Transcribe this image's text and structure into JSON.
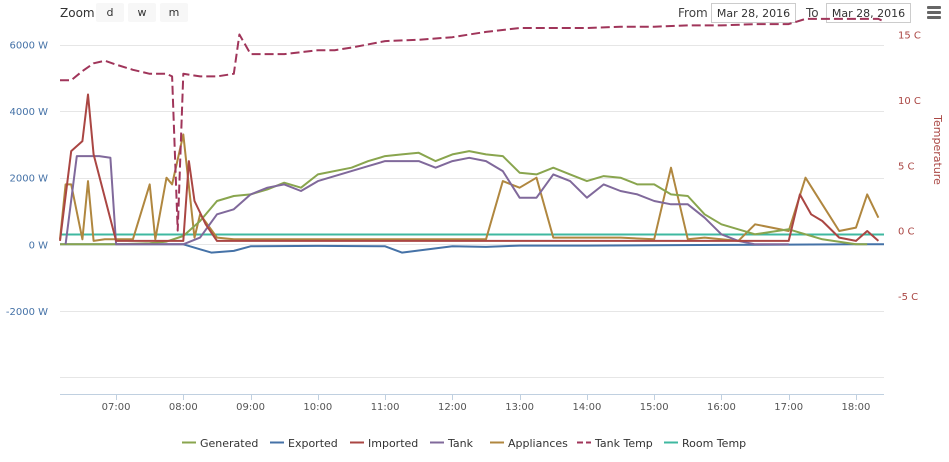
{
  "toolbar": {
    "zoom_label": "Zoom",
    "zoom_buttons": [
      "d",
      "w",
      "m"
    ],
    "from_label": "From",
    "from_value": "Mar 28, 2016",
    "to_label": "To",
    "to_value": "Mar 28, 2016"
  },
  "colors": {
    "Generated": "#89A54E",
    "Exported": "#4572A7",
    "Imported": "#AA4643",
    "Tank": "#80699B",
    "Appliances": "#B0873F",
    "Tank Temp": "#A0355A",
    "Room Temp": "#3FB8A0"
  },
  "chart_data": {
    "type": "line",
    "x_unit": "time of day",
    "x_range": [
      "06:10",
      "18:25"
    ],
    "x_ticks": [
      "07:00",
      "08:00",
      "09:00",
      "10:00",
      "11:00",
      "12:00",
      "13:00",
      "14:00",
      "15:00",
      "16:00",
      "17:00",
      "18:00"
    ],
    "y_left": {
      "ticks": [
        "6000 W",
        "4000 W",
        "2000 W",
        "0 W",
        "-2000 W"
      ],
      "range": [
        -4500,
        6500
      ],
      "unit": "W"
    },
    "y_right": {
      "title": "Temperature",
      "ticks": [
        "15 C",
        "10 C",
        "5 C",
        "0 C",
        "-5 C"
      ],
      "range": [
        -12.5,
        15.5
      ],
      "unit": "C"
    },
    "grid": true,
    "legend": "bottom",
    "series": [
      {
        "name": "Generated",
        "axis": "left",
        "x": [
          "06:10",
          "06:30",
          "07:00",
          "07:30",
          "07:45",
          "08:00",
          "08:15",
          "08:30",
          "08:45",
          "09:00",
          "09:15",
          "09:30",
          "09:45",
          "10:00",
          "10:30",
          "10:45",
          "11:00",
          "11:15",
          "11:30",
          "11:45",
          "12:00",
          "12:15",
          "12:30",
          "12:45",
          "13:00",
          "13:15",
          "13:30",
          "13:45",
          "14:00",
          "14:15",
          "14:30",
          "14:45",
          "15:00",
          "15:15",
          "15:30",
          "15:45",
          "16:00",
          "16:30",
          "17:00",
          "17:30",
          "18:00",
          "18:10"
        ],
        "y": [
          0,
          0,
          0,
          30,
          80,
          250,
          700,
          1300,
          1450,
          1500,
          1650,
          1850,
          1700,
          2100,
          2300,
          2500,
          2650,
          2700,
          2750,
          2500,
          2700,
          2800,
          2700,
          2650,
          2150,
          2100,
          2300,
          2100,
          1900,
          2050,
          2000,
          1800,
          1800,
          1500,
          1450,
          900,
          600,
          300,
          450,
          150,
          0,
          0
        ]
      },
      {
        "name": "Exported",
        "axis": "left",
        "x": [
          "06:10",
          "07:00",
          "08:00",
          "08:15",
          "08:25",
          "08:45",
          "09:00",
          "10:00",
          "11:00",
          "11:15",
          "12:00",
          "12:30",
          "13:00",
          "14:00",
          "15:00",
          "16:00",
          "17:00",
          "18:00",
          "18:25"
        ],
        "y": [
          0,
          0,
          0,
          -150,
          -250,
          -200,
          -60,
          -50,
          -60,
          -250,
          -60,
          -80,
          -40,
          -40,
          -30,
          -20,
          -10,
          0,
          0
        ]
      },
      {
        "name": "Imported",
        "axis": "left",
        "x": [
          "06:10",
          "06:20",
          "06:30",
          "06:35",
          "06:40",
          "07:00",
          "08:00",
          "08:05",
          "08:10",
          "08:20",
          "08:30",
          "09:00",
          "13:00",
          "14:00",
          "15:00",
          "16:00",
          "17:00",
          "17:10",
          "17:20",
          "17:30",
          "17:45",
          "18:00",
          "18:10",
          "18:20"
        ],
        "y": [
          100,
          2800,
          3100,
          4500,
          2700,
          100,
          100,
          2500,
          1300,
          600,
          100,
          100,
          100,
          100,
          100,
          100,
          100,
          1500,
          900,
          700,
          200,
          100,
          400,
          100
        ]
      },
      {
        "name": "Tank",
        "axis": "left",
        "x": [
          "06:15",
          "06:25",
          "06:45",
          "06:55",
          "07:00",
          "08:00",
          "08:15",
          "08:30",
          "08:45",
          "09:00",
          "09:15",
          "09:30",
          "09:45",
          "10:00",
          "10:30",
          "10:45",
          "11:00",
          "11:15",
          "11:30",
          "11:45",
          "12:00",
          "12:15",
          "12:30",
          "12:45",
          "13:00",
          "13:15",
          "13:30",
          "13:45",
          "14:00",
          "14:15",
          "14:30",
          "14:45",
          "15:00",
          "15:15",
          "15:30",
          "15:45",
          "16:00",
          "16:15",
          "16:30",
          "17:00"
        ],
        "y": [
          0,
          2650,
          2650,
          2600,
          0,
          0,
          200,
          900,
          1050,
          1500,
          1700,
          1800,
          1600,
          1900,
          2200,
          2350,
          2500,
          2500,
          2500,
          2300,
          2500,
          2600,
          2500,
          2200,
          1400,
          1400,
          2100,
          1900,
          1400,
          1800,
          1600,
          1500,
          1300,
          1200,
          1200,
          800,
          300,
          100,
          0,
          0
        ]
      },
      {
        "name": "Appliances",
        "axis": "left",
        "x": [
          "06:10",
          "06:15",
          "06:20",
          "06:30",
          "06:35",
          "06:40",
          "06:50",
          "07:00",
          "07:15",
          "07:30",
          "07:35",
          "07:45",
          "07:50",
          "08:00",
          "08:10",
          "08:15",
          "08:30",
          "08:45",
          "09:00",
          "10:00",
          "11:00",
          "12:00",
          "12:30",
          "12:45",
          "13:00",
          "13:15",
          "13:30",
          "14:00",
          "14:30",
          "15:00",
          "15:15",
          "15:30",
          "15:45",
          "16:00",
          "16:15",
          "16:30",
          "17:00",
          "17:15",
          "17:30",
          "17:45",
          "18:00",
          "18:10",
          "18:20"
        ],
        "y": [
          150,
          1800,
          1800,
          150,
          1900,
          100,
          150,
          150,
          150,
          1800,
          150,
          2000,
          1800,
          3300,
          200,
          900,
          200,
          150,
          150,
          150,
          150,
          150,
          150,
          1900,
          1700,
          2000,
          200,
          200,
          200,
          150,
          2300,
          150,
          200,
          150,
          100,
          600,
          400,
          2000,
          1200,
          400,
          500,
          1500,
          800
        ]
      },
      {
        "name": "Tank Temp",
        "axis": "right",
        "x": [
          "06:10",
          "06:20",
          "06:30",
          "06:40",
          "06:50",
          "07:00",
          "07:15",
          "07:30",
          "07:45",
          "07:50",
          "07:55",
          "08:00",
          "08:15",
          "08:30",
          "08:45",
          "08:50",
          "09:00",
          "09:30",
          "10:00",
          "10:15",
          "10:30",
          "11:00",
          "11:30",
          "12:00",
          "12:15",
          "12:30",
          "13:00",
          "13:30",
          "14:00",
          "14:30",
          "15:00",
          "15:30",
          "16:00",
          "16:30",
          "17:00",
          "17:15",
          "17:45",
          "18:00",
          "18:20",
          "18:25"
        ],
        "y": [
          11.5,
          11.5,
          12.2,
          12.8,
          13.0,
          12.7,
          12.3,
          12.0,
          12.0,
          11.8,
          0,
          12.0,
          11.8,
          11.8,
          12.0,
          15.0,
          13.5,
          13.5,
          13.8,
          13.8,
          14.0,
          14.5,
          14.6,
          14.8,
          15.0,
          15.2,
          15.5,
          15.5,
          15.5,
          15.6,
          15.6,
          15.7,
          15.7,
          15.8,
          15.8,
          16.2,
          16.2,
          16.2,
          16.2,
          16.0
        ]
      },
      {
        "name": "Room Temp",
        "axis": "right",
        "x": [
          "06:10",
          "18:25"
        ],
        "y": [
          -0.3,
          -0.3
        ]
      }
    ]
  }
}
